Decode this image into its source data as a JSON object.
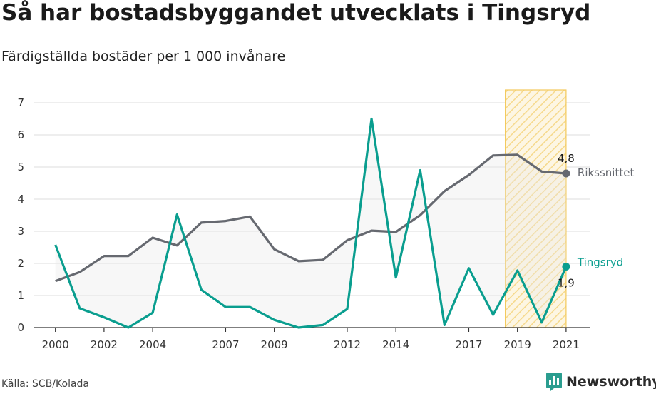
{
  "title": "Så har bostadsbyggandet utvecklats i Tingsryd",
  "subtitle": "Färdigställda bostäder per 1 000 invånare",
  "source": "Källa: SCB/Kolada",
  "brand": "Newsworthy",
  "colors": {
    "tingsryd": "#0a9e8f",
    "riket": "#666970",
    "highlight": "#f3c95a",
    "brand": "#2a9d8f"
  },
  "chart_data": {
    "type": "line",
    "x": [
      2000,
      2001,
      2002,
      2003,
      2004,
      2005,
      2006,
      2007,
      2008,
      2009,
      2010,
      2011,
      2012,
      2013,
      2014,
      2015,
      2016,
      2017,
      2018,
      2019,
      2020,
      2021
    ],
    "xticks": [
      2000,
      2002,
      2004,
      2007,
      2009,
      2012,
      2014,
      2017,
      2019,
      2021
    ],
    "xtick_labels": [
      "2000",
      "2002",
      "2004",
      "2007",
      "2009",
      "2012",
      "2014",
      "2017",
      "2019",
      "2021"
    ],
    "yticks": [
      0,
      1,
      2,
      3,
      4,
      5,
      6,
      7
    ],
    "ytick_labels": [
      "0",
      "1",
      "2",
      "3",
      "4",
      "5",
      "6",
      "7"
    ],
    "ylim": [
      0,
      7.4
    ],
    "xlim": [
      1999.1,
      2022.0
    ],
    "grid": true,
    "highlight_range": [
      2018.5,
      2021.0
    ],
    "series": [
      {
        "name": "Rikssnittet",
        "key": "riket",
        "values": [
          1.45,
          1.73,
          2.23,
          2.23,
          2.8,
          2.56,
          3.27,
          3.32,
          3.46,
          2.44,
          2.07,
          2.11,
          2.72,
          3.02,
          2.98,
          3.5,
          4.25,
          4.75,
          5.36,
          5.38,
          4.86,
          4.8
        ],
        "end_label": "4,8"
      },
      {
        "name": "Tingsryd",
        "key": "tingsryd",
        "values": [
          2.58,
          0.6,
          0.32,
          0.0,
          0.46,
          3.52,
          1.18,
          0.64,
          0.64,
          0.24,
          0.0,
          0.08,
          0.58,
          6.5,
          1.56,
          4.9,
          0.08,
          1.85,
          0.4,
          1.78,
          0.16,
          1.9
        ],
        "end_label": "1,9"
      }
    ]
  }
}
